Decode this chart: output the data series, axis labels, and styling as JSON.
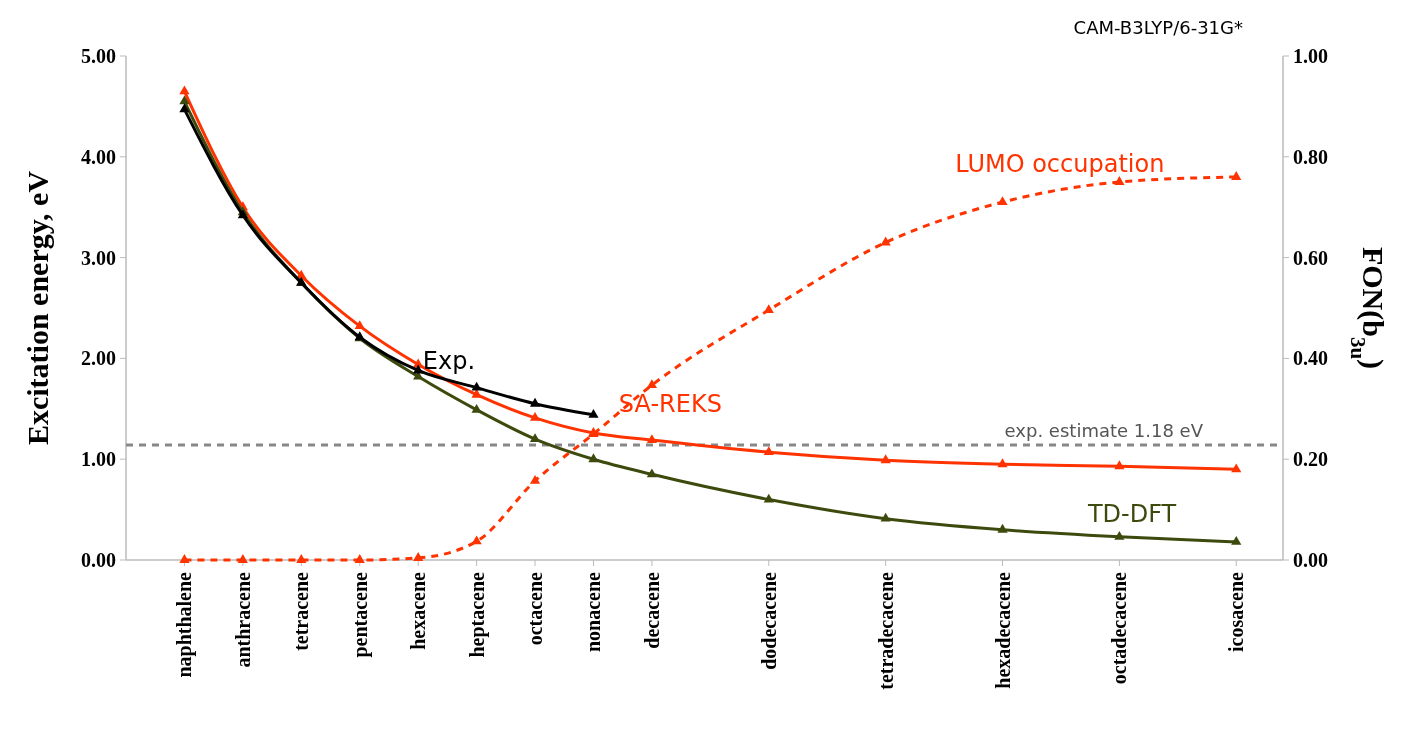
{
  "chart_data": {
    "type": "line",
    "ylabel": "Excitation energy, eV",
    "y2label": "FON(b$_{3u}$)",
    "categories": [
      "naphthalene",
      "anthracene",
      "tetracene",
      "pentacene",
      "hexacene",
      "heptacene",
      "octacene",
      "nonacene",
      "decacene",
      null,
      "dodecacene",
      null,
      "tetradecacene",
      null,
      "hexadecacene",
      null,
      "octadecacene",
      null,
      "icosacene"
    ],
    "ylim": [
      0,
      5
    ],
    "yticks": [
      {
        "value": 0,
        "label": "0.00"
      },
      {
        "value": 1,
        "label": "1.00"
      },
      {
        "value": 2,
        "label": "2.00"
      },
      {
        "value": 3,
        "label": "3.00"
      },
      {
        "value": 4,
        "label": "4.00"
      },
      {
        "value": 5,
        "label": "5.00"
      }
    ],
    "y2lim": [
      0,
      1
    ],
    "y2ticks": [
      {
        "value": 0,
        "label": "0.00"
      },
      {
        "value": 0.2,
        "label": "0.20"
      },
      {
        "value": 0.4,
        "label": "0.40"
      },
      {
        "value": 0.6,
        "label": "0.60"
      },
      {
        "value": 0.8,
        "label": "0.80"
      },
      {
        "value": 1,
        "label": "1.00"
      }
    ],
    "marker": "triangle",
    "grid": false,
    "series": [
      {
        "name": "SA-REKS",
        "color": "#ff3300",
        "values": [
          4.65,
          3.5,
          2.82,
          2.32,
          1.94,
          1.64,
          1.41,
          1.26,
          1.19,
          null,
          1.07,
          null,
          0.99,
          null,
          0.95,
          null,
          0.93,
          null,
          0.9
        ]
      },
      {
        "name": "TD-DFT",
        "color": "#3d4a0e",
        "values": [
          4.55,
          3.45,
          2.75,
          2.2,
          1.82,
          1.49,
          1.2,
          1.0,
          0.85,
          null,
          0.6,
          null,
          0.41,
          null,
          0.3,
          null,
          0.23,
          null,
          0.18
        ]
      },
      {
        "name": "Exp.",
        "color": "#000000",
        "values": [
          4.47,
          3.42,
          2.75,
          2.21,
          1.88,
          1.71,
          1.55,
          1.44,
          null,
          null,
          null,
          null,
          null,
          null,
          null,
          null,
          null,
          null,
          null
        ]
      },
      {
        "name": "LUMO occupation",
        "color": "#ff3300",
        "axis": "y2",
        "line_style": "dashed",
        "values": [
          0,
          0,
          0,
          0,
          0.004,
          0.037,
          0.157,
          0.25,
          0.347,
          null,
          0.496,
          null,
          0.63,
          null,
          0.71,
          null,
          0.75,
          null,
          0.76
        ]
      }
    ],
    "ref_lines": [
      {
        "axis": "y",
        "value": 1.14,
        "label": "exp. estimate 1.18 eV",
        "color": "#888888",
        "line_style": "dashed"
      }
    ],
    "annotations": [
      "CAM-B3LYP/6-31G*"
    ]
  }
}
